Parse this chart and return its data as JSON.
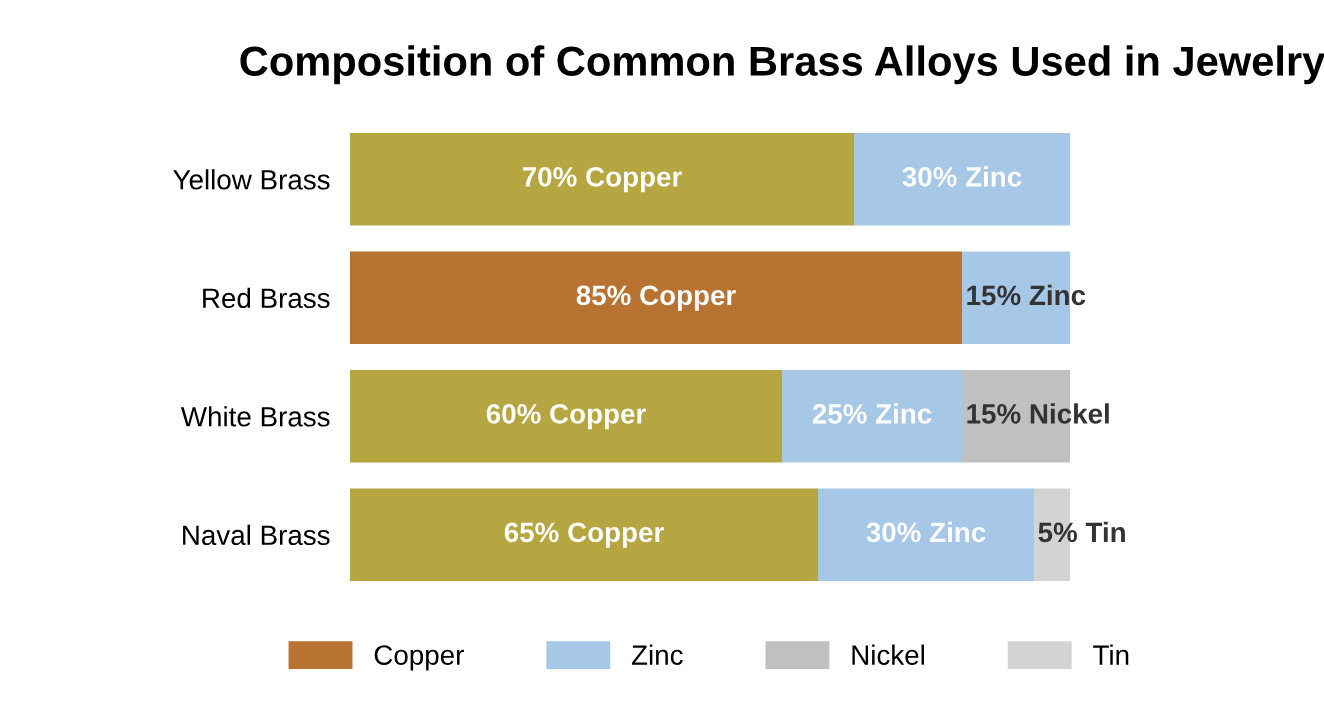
{
  "chart_data": {
    "type": "bar",
    "title": "Composition of Common Brass Alloys Used in Jewelry",
    "orientation": "horizontal",
    "stacked": true,
    "categories": [
      "Yellow Brass",
      "Red Brass",
      "White Brass",
      "Naval Brass"
    ],
    "xlim": [
      0,
      100
    ],
    "tick_labels": "y",
    "legend": "bottom",
    "grid": false,
    "series": [
      {
        "name": "Copper",
        "color": "#b87333",
        "colors": [
          "#b5a642",
          "#b87333",
          "#b5a642",
          "#b5a642"
        ],
        "values": [
          70,
          85,
          60,
          65
        ],
        "value_labels": [
          "70% Copper",
          "85% Copper",
          "60% Copper",
          "65% Copper"
        ]
      },
      {
        "name": "Zinc",
        "color": "#a7c7e7",
        "values": [
          30,
          15,
          25,
          30
        ],
        "value_labels": [
          "30% Zinc",
          "15% Zinc",
          "25% Zinc",
          "30% Zinc"
        ]
      },
      {
        "name": "Nickel",
        "color": "#c0c0c0",
        "values": [
          0,
          0,
          15,
          0
        ],
        "value_labels": [
          null,
          null,
          "15% Nickel",
          null
        ]
      },
      {
        "name": "Tin",
        "color": "#d3d3d3",
        "values": [
          0,
          0,
          0,
          5
        ],
        "value_labels": [
          null,
          null,
          null,
          "5% Tin"
        ]
      }
    ]
  }
}
